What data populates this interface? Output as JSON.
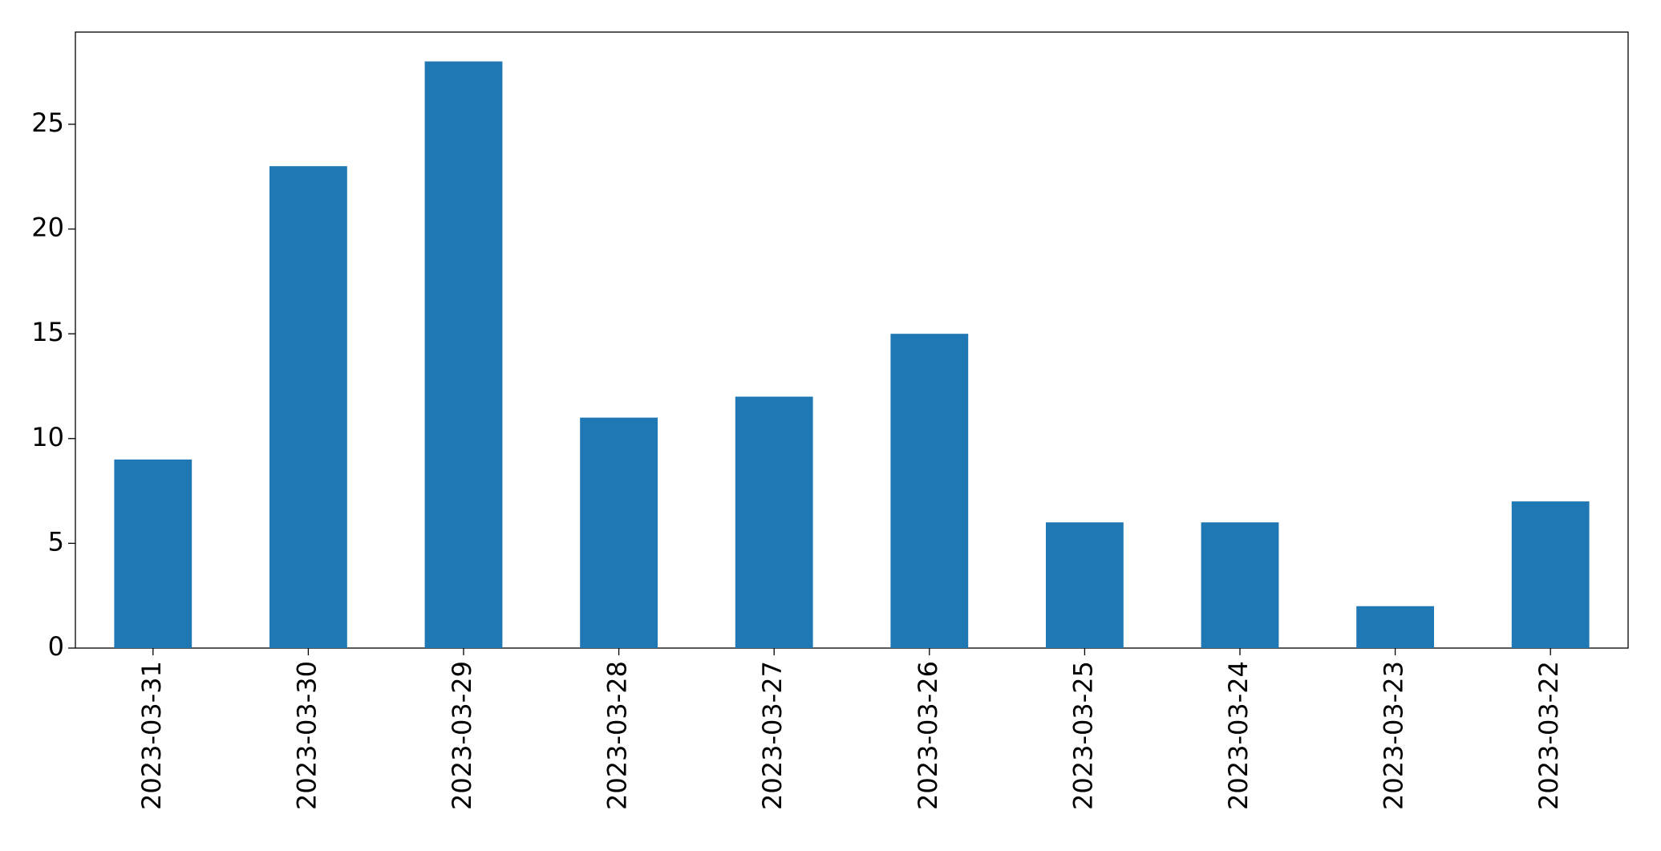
{
  "chart_data": {
    "type": "bar",
    "categories": [
      "2023-03-31",
      "2023-03-30",
      "2023-03-29",
      "2023-03-28",
      "2023-03-27",
      "2023-03-26",
      "2023-03-25",
      "2023-03-24",
      "2023-03-23",
      "2023-03-22"
    ],
    "values": [
      9,
      23,
      28,
      11,
      12,
      15,
      6,
      6,
      2,
      7
    ],
    "color": "#1f77b4",
    "ylim": [
      0,
      29.4
    ],
    "yticks": [
      0,
      5,
      10,
      15,
      20,
      25
    ],
    "grid": false
  }
}
